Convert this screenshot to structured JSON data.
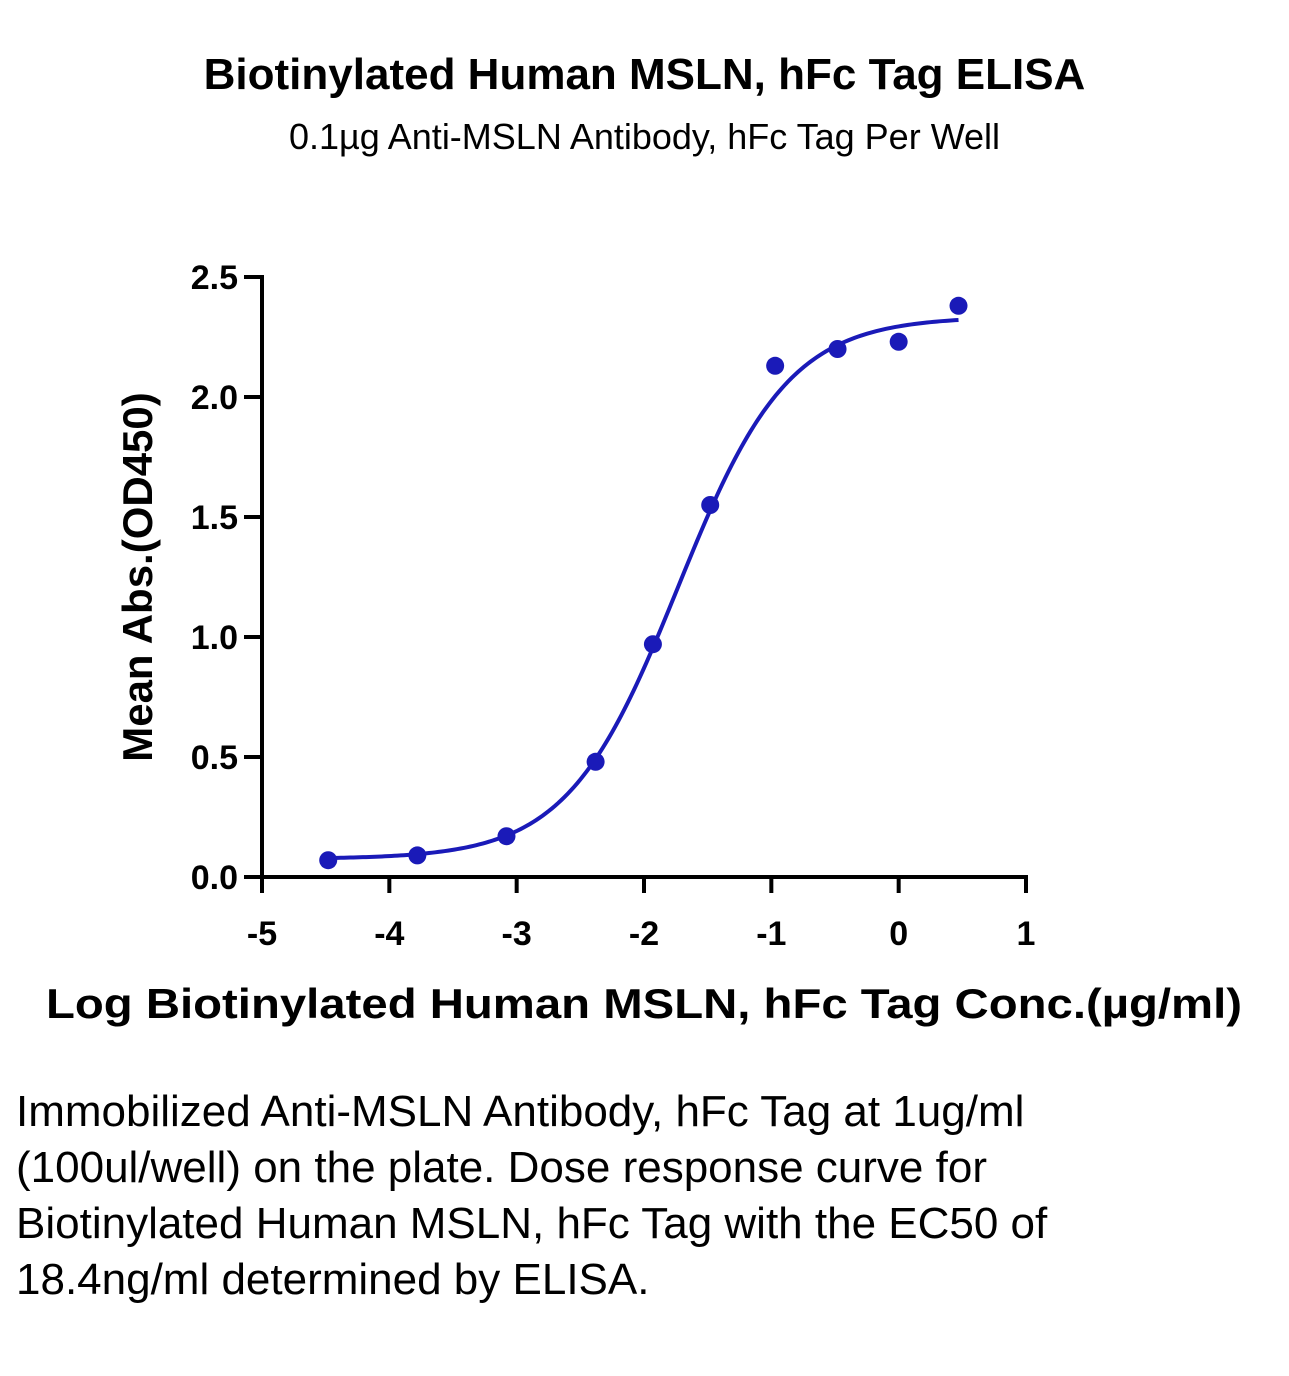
{
  "chart_data": {
    "type": "scatter",
    "title": "Biotinylated Human MSLN, hFc Tag ELISA",
    "subtitle": "0.1µg Anti-MSLN Antibody, hFc Tag Per Well",
    "xlabel": "Log Biotinylated Human MSLN, hFc Tag Conc.(µg/ml)",
    "ylabel": "Mean Abs.(OD450)",
    "xlim": [
      -5,
      1
    ],
    "ylim": [
      0,
      2.5
    ],
    "xticks": [
      -5,
      -4,
      -3,
      -2,
      -1,
      0,
      1
    ],
    "xtick_labels": [
      "-5",
      "-4",
      "-3",
      "-2",
      "-1",
      "0",
      "1"
    ],
    "yticks": [
      0,
      0.5,
      1.0,
      1.5,
      2.0,
      2.5
    ],
    "ytick_labels": [
      "0.0",
      "0.5",
      "1.0",
      "1.5",
      "2.0",
      "2.5"
    ],
    "grid": false,
    "series": [
      {
        "color": "#1a1ab8",
        "x": [
          -4.48,
          -3.78,
          -3.08,
          -2.38,
          -1.93,
          -1.48,
          -0.97,
          -0.48,
          0.0,
          0.47
        ],
        "y": [
          0.07,
          0.09,
          0.17,
          0.48,
          0.97,
          1.55,
          2.13,
          2.2,
          2.23,
          2.38
        ],
        "fit": {
          "model": "four-parameter logistic",
          "bottom": 0.075,
          "top": 2.335,
          "log_ec50": -1.735,
          "hill_slope": 1.0,
          "x_range": [
            -4.48,
            0.47
          ]
        }
      }
    ]
  },
  "caption": "Immobilized Anti-MSLN Antibody, hFc Tag at 1ug/ml (100ul/well) on the plate. Dose response curve for Biotinylated Human MSLN, hFc Tag with the EC50 of 18.4ng/ml determined by ELISA."
}
